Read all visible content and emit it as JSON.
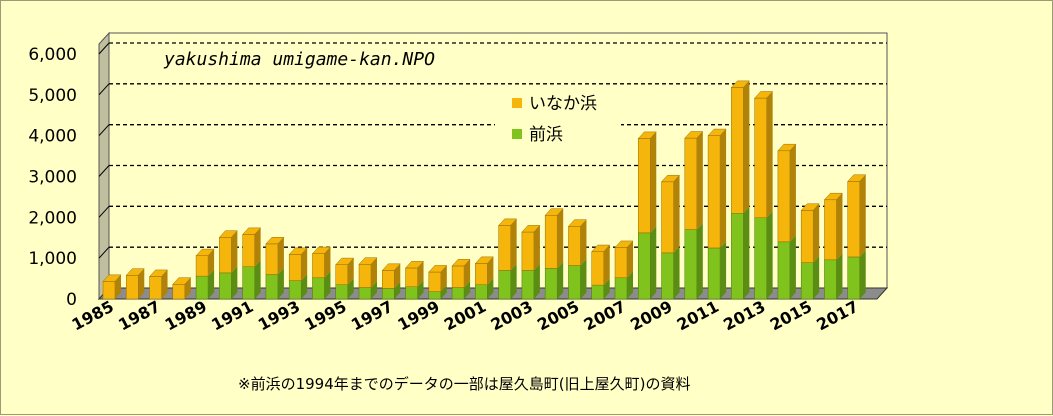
{
  "chart_data": {
    "type": "bar",
    "stacked": true,
    "three_d": true,
    "categories": [
      "1985",
      "1986",
      "1987",
      "1988",
      "1989",
      "1990",
      "1991",
      "1992",
      "1993",
      "1994",
      "1995",
      "1996",
      "1997",
      "1998",
      "1999",
      "2000",
      "2001",
      "2002",
      "2003",
      "2004",
      "2005",
      "2006",
      "2007",
      "2008",
      "2009",
      "2010",
      "2011",
      "2012",
      "2013",
      "2014",
      "2015",
      "2016",
      "2017"
    ],
    "tick_labels": [
      "1985",
      "1987",
      "1989",
      "1991",
      "1993",
      "1995",
      "1997",
      "1999",
      "2001",
      "2003",
      "2005",
      "2007",
      "2009",
      "2011",
      "2013",
      "2015",
      "2017"
    ],
    "series": [
      {
        "name": "前浜",
        "color": "#7fc31c",
        "values": [
          0,
          0,
          0,
          0,
          560,
          640,
          790,
          600,
          450,
          520,
          350,
          280,
          260,
          300,
          180,
          280,
          350,
          700,
          700,
          750,
          820,
          340,
          520,
          1620,
          1130,
          1700,
          1250,
          2100,
          1990,
          1400,
          890,
          960,
          1030
        ]
      },
      {
        "name": "いなか浜",
        "color": "#f5b50a",
        "values": [
          430,
          580,
          550,
          360,
          500,
          870,
          790,
          750,
          640,
          590,
          490,
          570,
          440,
          460,
          480,
          530,
          520,
          1100,
          940,
          1300,
          960,
          820,
          740,
          2310,
          1740,
          2240,
          2750,
          3080,
          2930,
          2230,
          1280,
          1470,
          1850
        ]
      }
    ],
    "ylim": [
      0,
      6000
    ],
    "yticks": [
      "0",
      "1,000",
      "2,000",
      "3,000",
      "4,000",
      "5,000",
      "6,000"
    ],
    "ytick_values": [
      0,
      1000,
      2000,
      3000,
      4000,
      5000,
      6000
    ],
    "grid": true,
    "legend_position": "center-right",
    "annotation": "yakushima umigame-kan.NPO",
    "title": "",
    "xlabel": "",
    "ylabel": ""
  },
  "note": "※前浜の1994年までのデータの一部は屋久島町(旧上屋久町)の資料",
  "colors": {
    "background": "#ffffc6",
    "wall": "#ffffc6",
    "floor": "#8c8c8c",
    "side_wall": "#bfbfa0"
  }
}
